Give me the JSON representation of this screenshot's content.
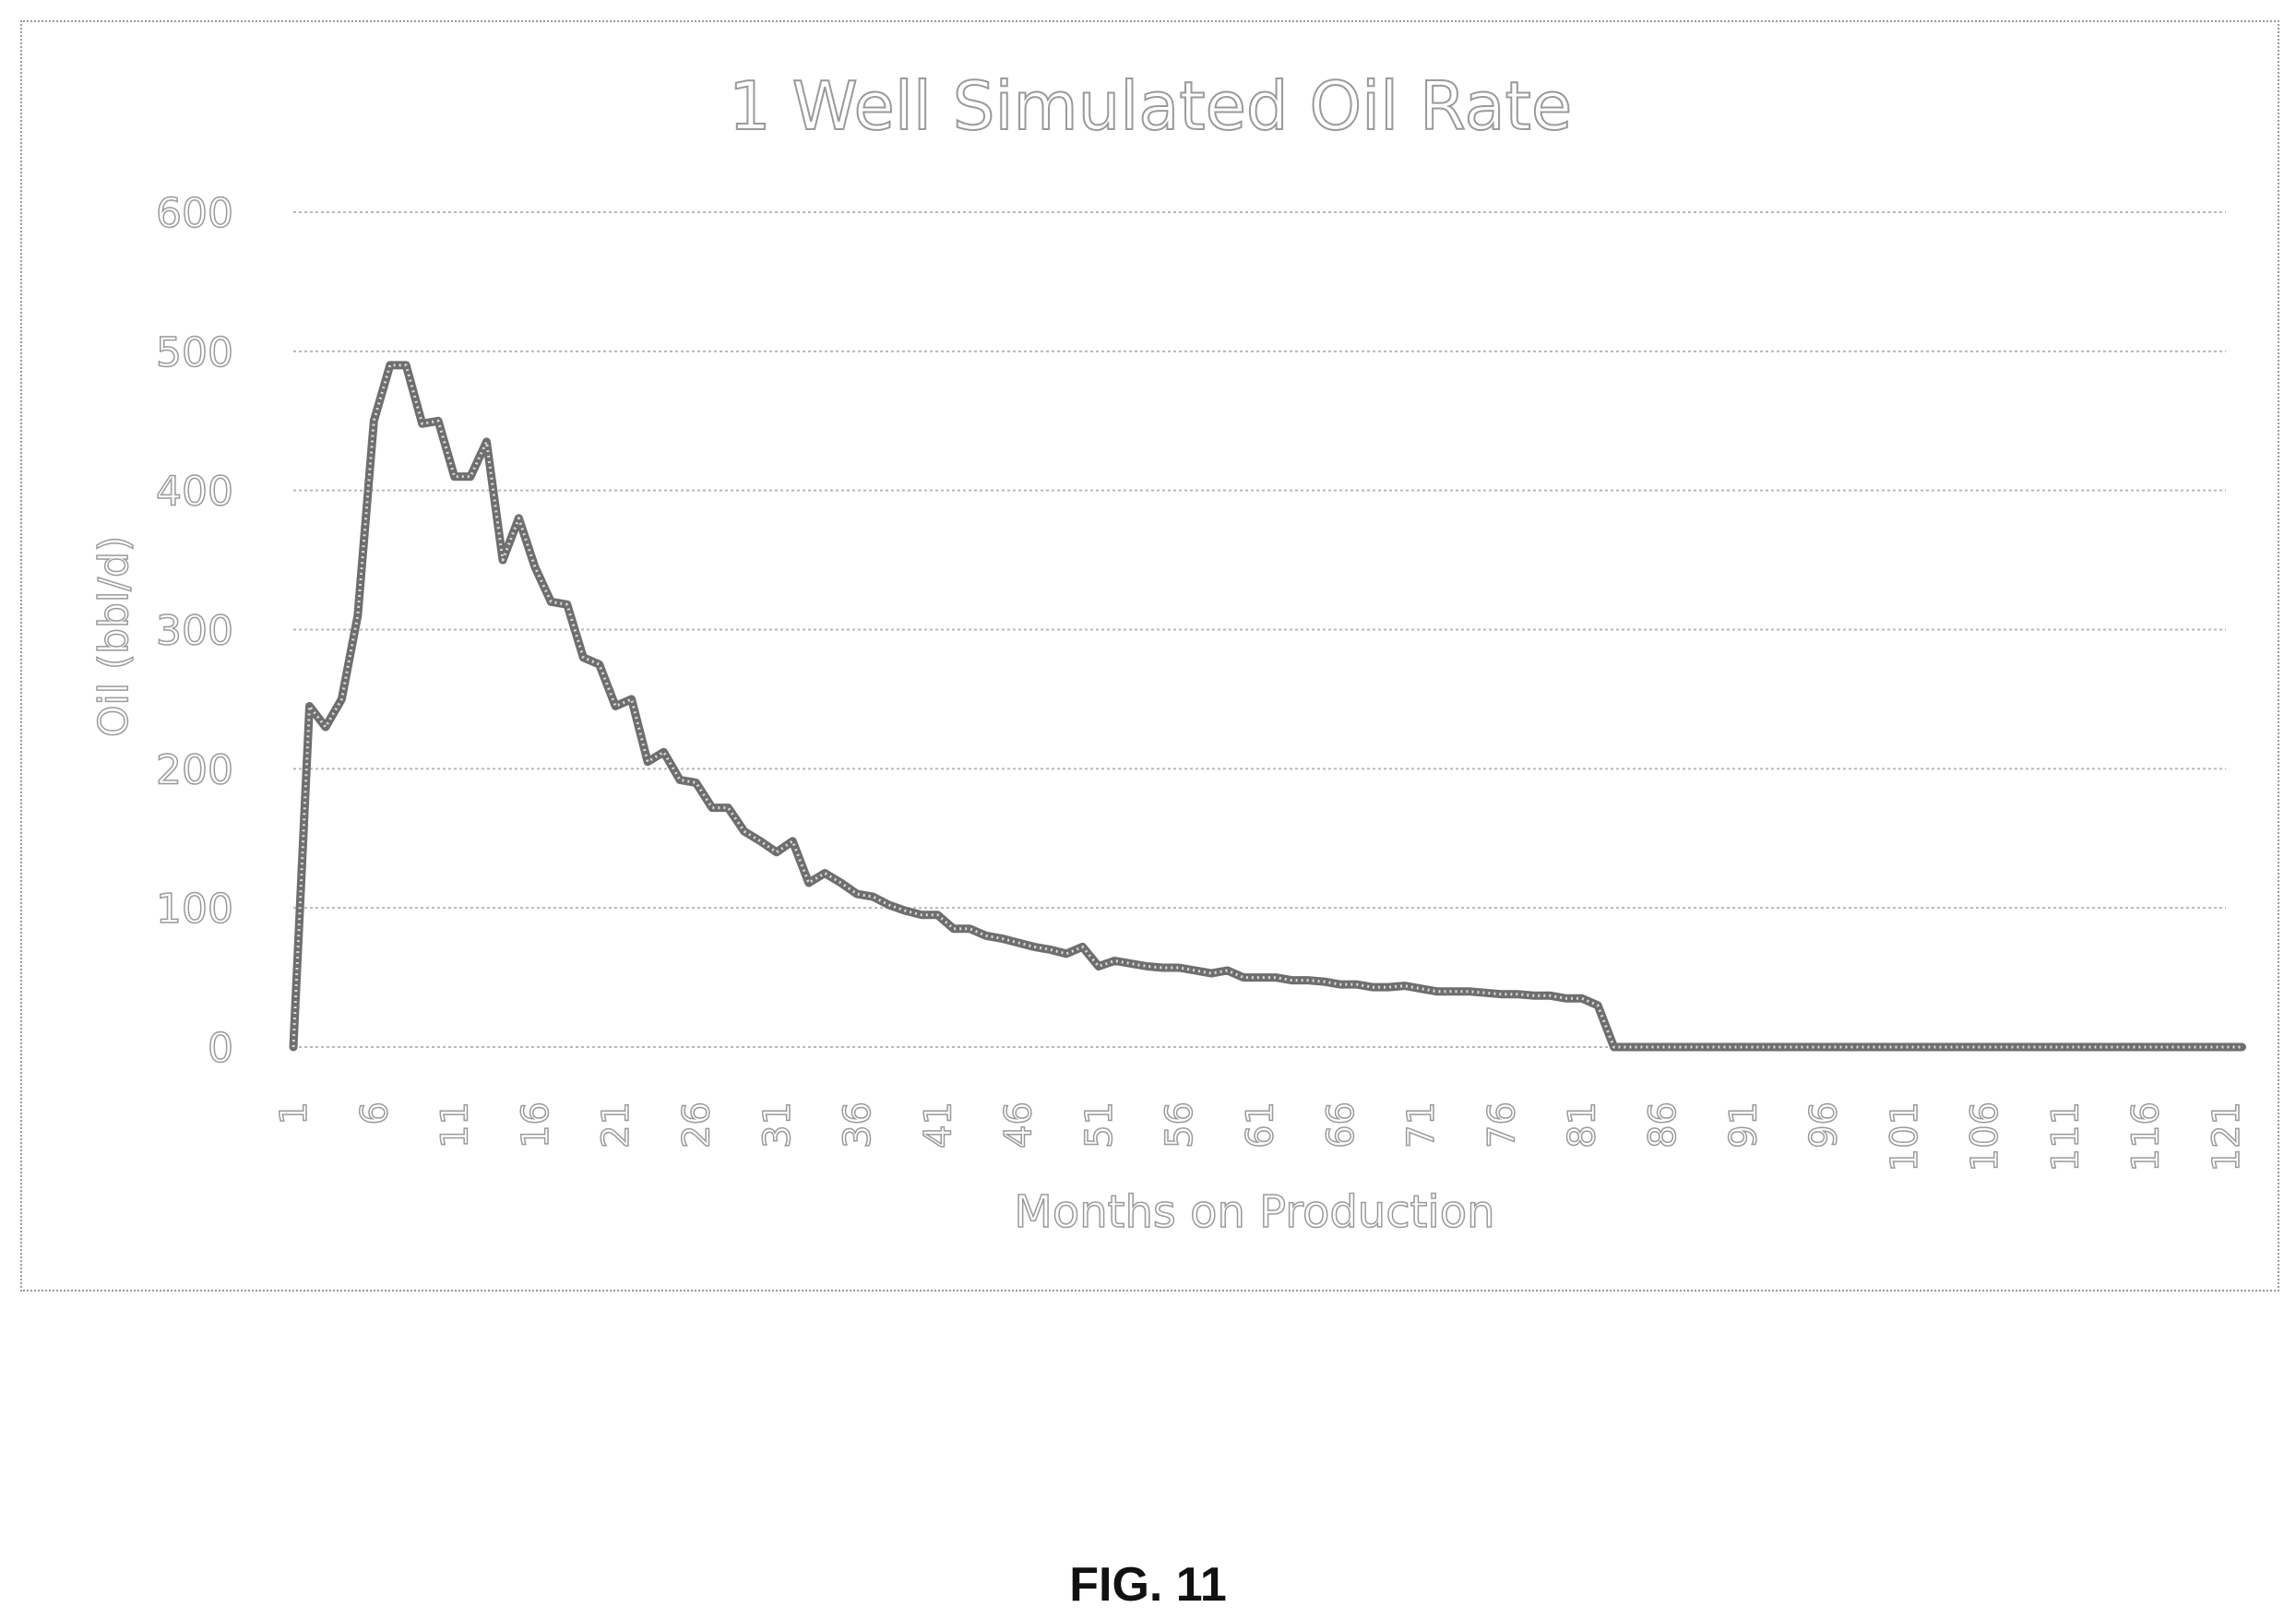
{
  "figure": {
    "label": "FIG. 11"
  },
  "chart_data": {
    "type": "line",
    "title": "1 Well Simulated Oil Rate",
    "xlabel": "Months on Production",
    "ylabel": "Oil (bbl/d)",
    "ylim": [
      0,
      600
    ],
    "yticks": [
      "0",
      "100",
      "200",
      "300",
      "400",
      "500",
      "600"
    ],
    "xticks": [
      "1",
      "6",
      "11",
      "16",
      "21",
      "26",
      "31",
      "36",
      "41",
      "46",
      "51",
      "56",
      "61",
      "66",
      "71",
      "76",
      "81",
      "86",
      "91",
      "96",
      "101",
      "106",
      "111",
      "116",
      "121"
    ],
    "grid": true,
    "line_color": "#6e6e6e",
    "grid_color": "#b8b8b8",
    "text_color": "#9a9a9a",
    "series": [
      {
        "x": [
          1,
          2,
          3,
          4,
          5,
          6,
          7,
          8,
          9,
          10,
          11,
          12,
          13,
          14,
          15,
          16,
          17,
          18,
          19,
          20,
          21,
          22,
          23,
          24,
          25,
          26,
          27,
          28,
          29,
          30,
          31,
          32,
          33,
          34,
          35,
          36,
          37,
          38,
          39,
          40,
          41,
          42,
          43,
          44,
          45,
          46,
          47,
          48,
          49,
          50,
          51,
          52,
          53,
          54,
          55,
          56,
          57,
          58,
          59,
          60,
          61,
          62,
          63,
          64,
          65,
          66,
          67,
          68,
          69,
          70,
          71,
          72,
          73,
          74,
          75,
          76,
          77,
          78,
          79,
          80,
          81,
          82,
          83,
          84,
          85,
          86,
          87,
          88,
          89,
          90,
          91,
          92,
          93,
          94,
          95,
          96,
          97,
          98,
          99,
          100,
          101,
          102,
          103,
          104,
          105,
          106,
          107,
          108,
          109,
          110,
          111,
          112,
          113,
          114,
          115,
          116,
          117,
          118,
          119,
          120,
          121,
          122
        ],
        "values": [
          0,
          245,
          230,
          250,
          310,
          450,
          490,
          490,
          448,
          450,
          410,
          410,
          435,
          350,
          380,
          345,
          320,
          318,
          280,
          275,
          245,
          250,
          205,
          212,
          192,
          190,
          172,
          172,
          155,
          148,
          140,
          148,
          118,
          125,
          118,
          110,
          108,
          102,
          98,
          95,
          95,
          85,
          85,
          80,
          78,
          75,
          72,
          70,
          67,
          72,
          58,
          62,
          60,
          58,
          57,
          57,
          55,
          53,
          55,
          50,
          50,
          50,
          48,
          48,
          47,
          45,
          45,
          43,
          43,
          44,
          42,
          40,
          40,
          40,
          39,
          38,
          38,
          37,
          37,
          35,
          35,
          30,
          0,
          0,
          0,
          0,
          0,
          0,
          0,
          0,
          0,
          0,
          0,
          0,
          0,
          0,
          0,
          0,
          0,
          0,
          0,
          0,
          0,
          0,
          0,
          0,
          0,
          0,
          0,
          0,
          0,
          0,
          0,
          0,
          0,
          0,
          0,
          0,
          0,
          0,
          0,
          0
        ]
      }
    ]
  }
}
